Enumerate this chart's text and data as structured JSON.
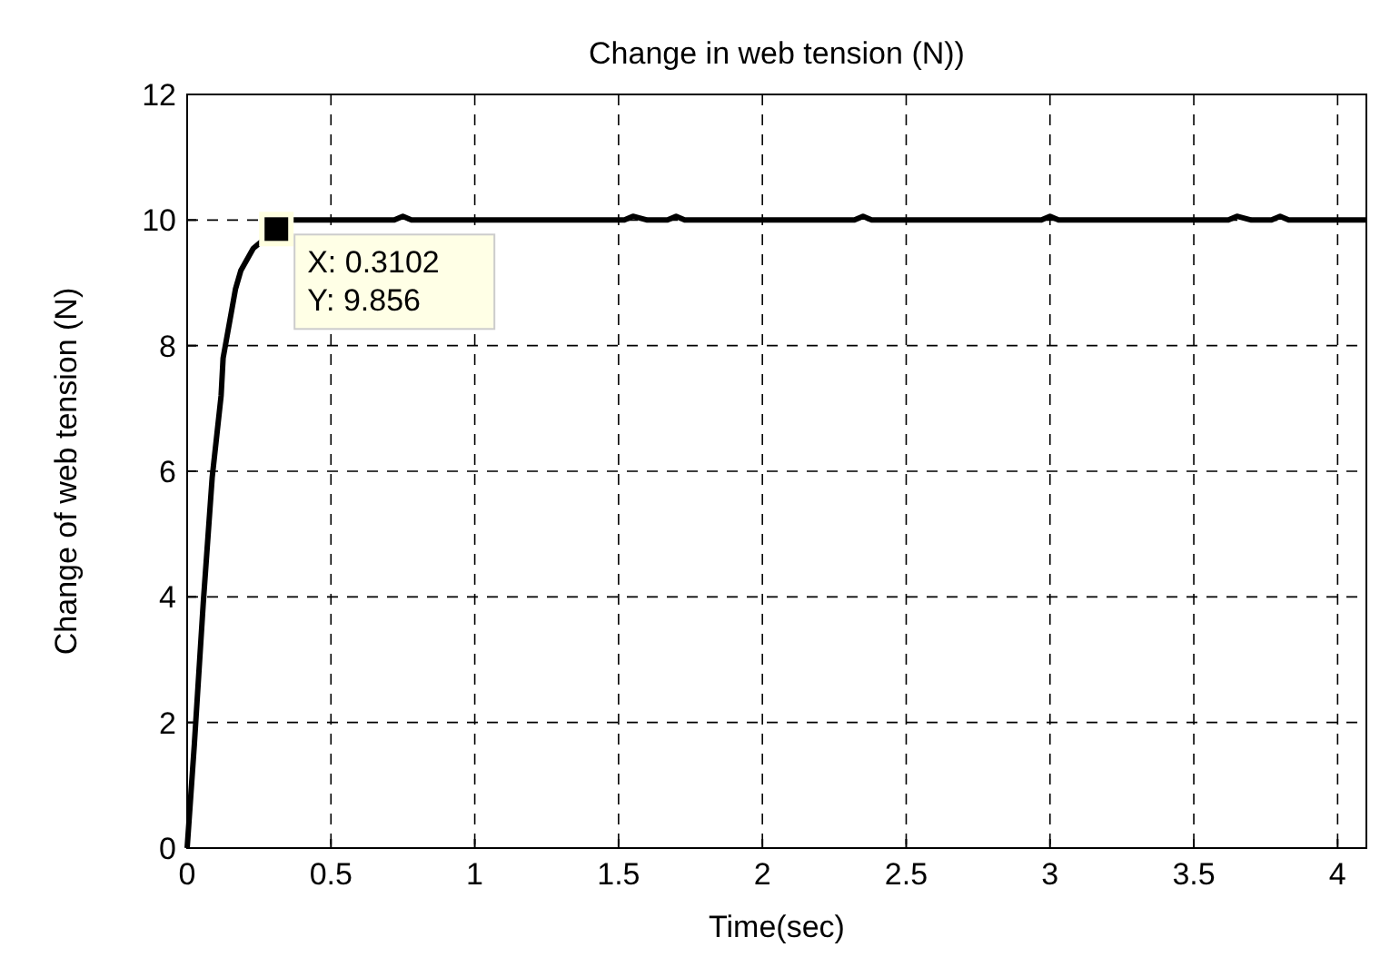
{
  "chart_data": {
    "type": "line",
    "title": "Change in web tension (N))",
    "xlabel": "Time(sec)",
    "ylabel": "Change of web tension (N)",
    "x": [
      0,
      0.025,
      0.056,
      0.087,
      0.118,
      0.125,
      0.168,
      0.187,
      0.23,
      0.3102,
      0.35,
      0.72,
      0.75,
      0.78,
      1.52,
      1.55,
      1.6,
      1.67,
      1.7,
      1.73,
      2.32,
      2.35,
      2.38,
      2.97,
      3.0,
      3.03,
      3.62,
      3.65,
      3.7,
      3.77,
      3.8,
      3.83,
      4.1
    ],
    "series": [
      {
        "color": "#000000",
        "values": [
          0,
          1.65,
          3.9,
          5.9,
          7.2,
          7.8,
          8.9,
          9.2,
          9.55,
          9.856,
          10,
          10,
          10.06,
          10,
          10,
          10.06,
          10,
          10,
          10.06,
          10,
          10,
          10.06,
          10,
          10,
          10.06,
          10,
          10,
          10.06,
          10,
          10,
          10.06,
          10,
          10
        ]
      }
    ],
    "xlim": [
      0,
      4.1
    ],
    "xticks": [
      0,
      0.5,
      1,
      1.5,
      2,
      2.5,
      3,
      3.5,
      4
    ],
    "ylim": [
      0,
      12
    ],
    "yticks": [
      0,
      2,
      4,
      6,
      8,
      10,
      12
    ],
    "grid": true,
    "marker": "none",
    "line_style": "solid",
    "annotations": [
      {
        "text": "X: 0.3102\nY: 9.856",
        "x": 0.3102,
        "y": 9.856
      }
    ]
  }
}
